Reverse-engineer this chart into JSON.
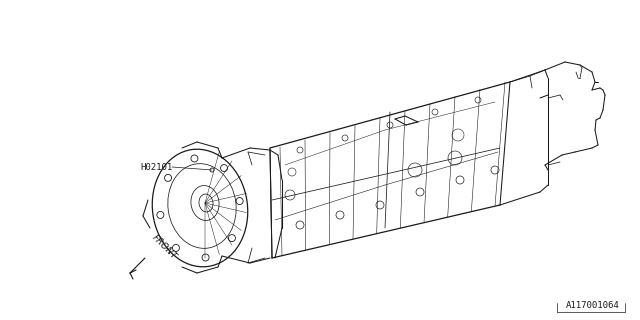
{
  "background_color": "#ffffff",
  "line_color": "#1a1a1a",
  "label_h02101": "H02101",
  "label_front": "FRONT",
  "label_part_number": "A117001064",
  "fig_width": 6.4,
  "fig_height": 3.2,
  "dpi": 100
}
